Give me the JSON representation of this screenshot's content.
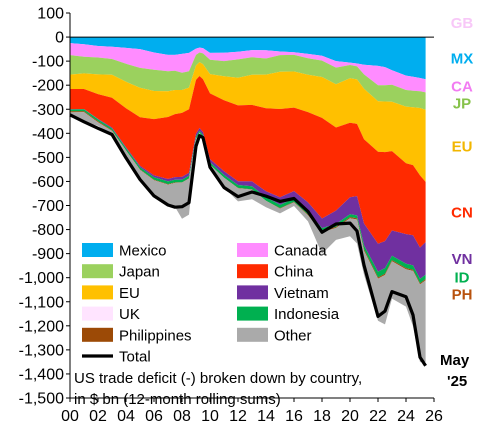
{
  "chart_data": {
    "type": "area",
    "subtitle_lines": [
      "US trade deficit (-) broken down by country,",
      "in $ bn (12-month rolling sums)"
    ],
    "end_label_lines": [
      "May",
      "'25"
    ],
    "x_ticks": [
      "00",
      "02",
      "04",
      "06",
      "08",
      "10",
      "12",
      "14",
      "16",
      "18",
      "20",
      "22",
      "24",
      "26"
    ],
    "y_ticks": [
      "100",
      "0",
      "-100",
      "-200",
      "-300",
      "-400",
      "-500",
      "-600",
      "-700",
      "-800",
      "-900",
      "-1,000",
      "-1,100",
      "-1,200",
      "-1,300",
      "-1,400",
      "-1,500"
    ],
    "xlim": [
      2000,
      2026
    ],
    "ylim": [
      -1500,
      100
    ],
    "grid": false,
    "x": [
      2000,
      2001,
      2002,
      2003,
      2004,
      2005,
      2006,
      2007,
      2007.5,
      2008,
      2008.5,
      2009,
      2009.25,
      2009.5,
      2010,
      2011,
      2012,
      2013,
      2014,
      2015,
      2016,
      2017,
      2018,
      2019,
      2020,
      2020.5,
      2021,
      2022,
      2022.5,
      2023,
      2024,
      2024.5,
      2025,
      2025.4
    ],
    "series": [
      {
        "name": "Mexico",
        "color": "#00AEEF",
        "end_label": "MX",
        "label_color": "#00AEEF",
        "values": [
          -25,
          -30,
          -37,
          -40,
          -45,
          -50,
          -64,
          -74,
          -74,
          -70,
          -66,
          -48,
          -44,
          -46,
          -66,
          -65,
          -61,
          -54,
          -55,
          -60,
          -63,
          -70,
          -78,
          -100,
          -106,
          -110,
          -115,
          -120,
          -125,
          -138,
          -160,
          -165,
          -170,
          -175
        ]
      },
      {
        "name": "Canada",
        "color": "#FF8CFF",
        "end_label": "CA",
        "label_color": "#F27CF2",
        "values": [
          -50,
          -52,
          -48,
          -51,
          -66,
          -78,
          -72,
          -68,
          -66,
          -78,
          -76,
          -26,
          -20,
          -22,
          -28,
          -35,
          -32,
          -30,
          -34,
          -15,
          -11,
          -18,
          -20,
          -27,
          -10,
          -12,
          -40,
          -80,
          -75,
          -60,
          -60,
          -58,
          -55,
          -55
        ]
      },
      {
        "name": "Japan",
        "color": "#9BD15E",
        "end_label": "JP",
        "label_color": "#86C24A",
        "values": [
          -81,
          -69,
          -70,
          -66,
          -75,
          -83,
          -88,
          -83,
          -80,
          -72,
          -68,
          -44,
          -40,
          -45,
          -60,
          -63,
          -76,
          -73,
          -67,
          -69,
          -69,
          -69,
          -68,
          -69,
          -55,
          -54,
          -60,
          -67,
          -68,
          -71,
          -69,
          -69,
          -70,
          -72
        ]
      },
      {
        "name": "EU",
        "color": "#FFC000",
        "end_label": "EU",
        "label_color": "#F2B600",
        "values": [
          -60,
          -65,
          -82,
          -95,
          -110,
          -122,
          -117,
          -107,
          -100,
          -95,
          -90,
          -60,
          -58,
          -62,
          -80,
          -100,
          -115,
          -125,
          -140,
          -155,
          -150,
          -155,
          -170,
          -180,
          -185,
          -185,
          -210,
          -210,
          -210,
          -205,
          -235,
          -240,
          -280,
          -300
        ]
      },
      {
        "name": "China",
        "color": "#FF2A00",
        "end_label": "CN",
        "label_color": "#FF2A00",
        "values": [
          -84,
          -83,
          -103,
          -124,
          -162,
          -202,
          -234,
          -258,
          -262,
          -266,
          -264,
          -224,
          -216,
          -220,
          -273,
          -295,
          -315,
          -318,
          -345,
          -367,
          -347,
          -375,
          -418,
          -345,
          -310,
          -300,
          -350,
          -382,
          -370,
          -330,
          -295,
          -292,
          -300,
          -250
        ]
      },
      {
        "name": "Vietnam",
        "color": "#7030A0",
        "end_label": "VN",
        "label_color": "#7030A0",
        "values": [
          -1,
          -1,
          -2,
          -4,
          -4,
          -6,
          -8,
          -10,
          -11,
          -12,
          -12,
          -12,
          -12,
          -12,
          -13,
          -15,
          -16,
          -20,
          -25,
          -31,
          -32,
          -38,
          -40,
          -56,
          -70,
          -80,
          -91,
          -116,
          -112,
          -105,
          -123,
          -125,
          -130,
          -136
        ]
      },
      {
        "name": "Indonesia",
        "color": "#00B050",
        "end_label": "ID",
        "label_color": "#00B050",
        "values": [
          -7,
          -8,
          -8,
          -7,
          -8,
          -9,
          -10,
          -11,
          -11,
          -11,
          -11,
          -9,
          -9,
          -9,
          -10,
          -11,
          -12,
          -13,
          -14,
          -14,
          -13,
          -13,
          -13,
          -12,
          -12,
          -12,
          -16,
          -24,
          -24,
          -18,
          -18,
          -18,
          -18,
          -18
        ]
      },
      {
        "name": "Philippines",
        "color": "#9C4A06",
        "end_label": "PH",
        "label_color": "#B8520E",
        "values": [
          -5,
          -4,
          -4,
          -3,
          -2,
          -2,
          -2,
          -2,
          -2,
          -1,
          -1,
          -1,
          -1,
          -1,
          -1,
          -1,
          -1,
          -1,
          -1,
          -2,
          -2,
          -3,
          -4,
          -4,
          -5,
          -5,
          -6,
          -5,
          -5,
          -5,
          -5,
          -5,
          -5,
          -5
        ]
      },
      {
        "name": "UK",
        "color": "#FFE4FF",
        "end_label": "GB",
        "label_color": "#F8C8F8",
        "values": [
          0,
          0,
          0,
          0,
          0,
          0,
          0,
          0,
          0,
          0,
          0,
          0,
          0,
          0,
          0,
          0,
          0,
          0,
          0,
          0,
          0,
          0,
          0,
          0,
          0,
          0,
          0,
          0,
          0,
          0,
          0,
          0,
          0,
          0
        ]
      },
      {
        "name": "Other",
        "color": "#AAAAAA",
        "end_label": "",
        "label_color": "#AAAAAA",
        "values": [
          -10,
          -40,
          -15,
          -15,
          -30,
          -40,
          -65,
          -85,
          -100,
          -150,
          -150,
          -20,
          4,
          0,
          -10,
          -40,
          -55,
          -40,
          -26,
          -20,
          -15,
          -25,
          -90,
          -50,
          -75,
          -100,
          -100,
          -175,
          -205,
          -155,
          -155,
          -230,
          -323,
          -339
        ]
      }
    ],
    "total": {
      "name": "Total",
      "color": "#000000",
      "values": [
        -323,
        -352,
        -379,
        -405,
        -502,
        -592,
        -660,
        -698,
        -707,
        -705,
        -688,
        -454,
        -410,
        -418,
        -541,
        -625,
        -663,
        -644,
        -661,
        -683,
        -671,
        -725,
        -811,
        -777,
        -773,
        -806,
        -948,
        -1161,
        -1139,
        -1058,
        -1079,
        -1155,
        -1331,
        -1366
      ]
    },
    "legend": [
      {
        "key": "Mexico",
        "label": "Mexico"
      },
      {
        "key": "Canada",
        "label": "Canada"
      },
      {
        "key": "Japan",
        "label": "Japan"
      },
      {
        "key": "China",
        "label": "China"
      },
      {
        "key": "EU",
        "label": "EU"
      },
      {
        "key": "Vietnam",
        "label": "Vietnam"
      },
      {
        "key": "UK",
        "label": "UK"
      },
      {
        "key": "Indonesia",
        "label": "Indonesia"
      },
      {
        "key": "Philippines",
        "label": "Philippines"
      },
      {
        "key": "Other",
        "label": "Other"
      },
      {
        "key": "Total",
        "label": "Total"
      }
    ],
    "legend_placement": "lower-left"
  }
}
